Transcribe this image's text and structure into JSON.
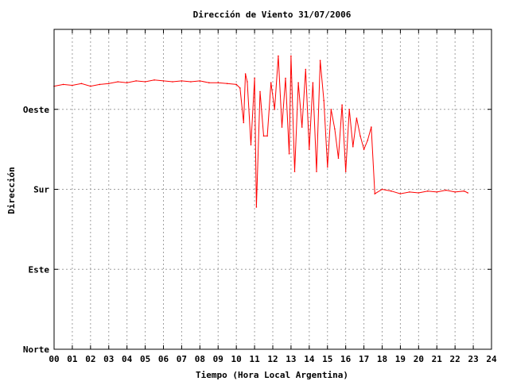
{
  "chart_data": {
    "type": "line",
    "title": "Dirección de Viento 31/07/2006",
    "xlabel": "Tiempo (Hora Local Argentina)",
    "ylabel": "Dirección",
    "xlim": [
      0,
      24
    ],
    "ylim": [
      0,
      360
    ],
    "x_ticks": [
      "00",
      "01",
      "02",
      "03",
      "04",
      "05",
      "06",
      "07",
      "08",
      "09",
      "10",
      "11",
      "12",
      "13",
      "14",
      "15",
      "16",
      "17",
      "18",
      "19",
      "20",
      "21",
      "22",
      "23",
      "24"
    ],
    "y_ticks": [
      {
        "value": 0,
        "label": "Norte"
      },
      {
        "value": 90,
        "label": "Este"
      },
      {
        "value": 180,
        "label": "Sur"
      },
      {
        "value": 270,
        "label": "Oeste"
      }
    ],
    "grid": true,
    "line_color": "#ff0000",
    "series": [
      {
        "x": [
          0.0,
          0.5,
          1.0,
          1.5,
          2.0,
          2.5,
          3.0,
          3.5,
          4.0,
          4.5,
          5.0,
          5.5,
          6.0,
          6.5,
          7.0,
          7.5,
          8.0,
          8.5,
          9.0,
          9.5,
          10.0,
          10.2,
          10.4,
          10.5,
          10.6,
          10.8,
          11.0,
          11.1,
          11.3,
          11.5,
          11.7,
          11.9,
          12.1,
          12.3,
          12.5,
          12.7,
          12.9,
          13.0,
          13.2,
          13.4,
          13.6,
          13.8,
          14.0,
          14.2,
          14.4,
          14.6,
          14.8,
          15.0,
          15.2,
          15.4,
          15.6,
          15.8,
          16.0,
          16.2,
          16.4,
          16.6,
          16.8,
          17.0,
          17.2,
          17.4,
          17.6,
          18.0,
          18.5,
          19.0,
          19.5,
          20.0,
          20.5,
          21.0,
          21.5,
          22.0,
          22.5,
          22.7
        ],
        "y": [
          296,
          298,
          297,
          299,
          296,
          298,
          299,
          301,
          300,
          302,
          301,
          303,
          302,
          301,
          302,
          301,
          302,
          300,
          300,
          299,
          298,
          294,
          255,
          310,
          301,
          230,
          305,
          160,
          290,
          240,
          240,
          300,
          270,
          330,
          250,
          305,
          220,
          330,
          200,
          300,
          250,
          315,
          225,
          300,
          200,
          325,
          280,
          205,
          270,
          248,
          215,
          275,
          200,
          270,
          228,
          260,
          240,
          225,
          235,
          250,
          175,
          180,
          178,
          175,
          177,
          176,
          178,
          177,
          179,
          177,
          178,
          176
        ]
      }
    ]
  }
}
